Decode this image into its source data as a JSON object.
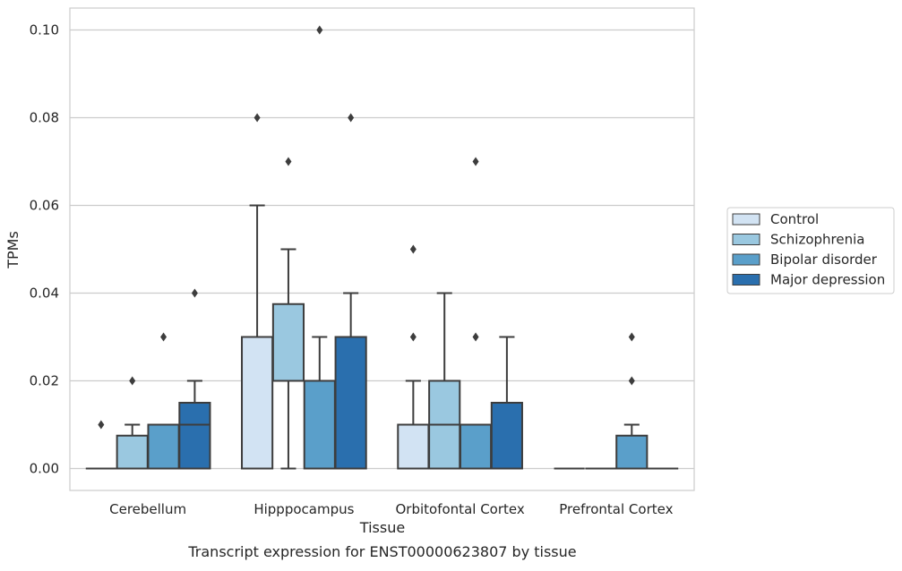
{
  "chart_data": {
    "type": "box",
    "title": "",
    "caption": "Transcript expression for ENST00000623807 by tissue",
    "xlabel": "Tissue",
    "ylabel": "TPMs",
    "ylim": [
      -0.005,
      0.105
    ],
    "yticks": [
      0.0,
      0.02,
      0.04,
      0.06,
      0.08,
      0.1
    ],
    "ytick_labels": [
      "0.00",
      "0.02",
      "0.04",
      "0.06",
      "0.08",
      "0.10"
    ],
    "grid": "horizontal",
    "legend_position": "right",
    "categories": [
      "Cerebellum",
      "Hipppocampus",
      "Orbitofontal Cortex",
      "Prefrontal Cortex"
    ],
    "series": [
      {
        "name": "Control",
        "color": "#d2e3f3",
        "boxes": [
          {
            "q1": 0.0,
            "median": 0.0,
            "q3": 0.0,
            "whisker_low": 0.0,
            "whisker_high": 0.0,
            "outliers": [
              0.01
            ]
          },
          {
            "q1": 0.0,
            "median": 0.0,
            "q3": 0.03,
            "whisker_low": 0.0,
            "whisker_high": 0.06,
            "outliers": [
              0.08
            ]
          },
          {
            "q1": 0.0,
            "median": 0.0,
            "q3": 0.01,
            "whisker_low": 0.0,
            "whisker_high": 0.02,
            "outliers": [
              0.03,
              0.05
            ]
          },
          {
            "q1": 0.0,
            "median": 0.0,
            "q3": 0.0,
            "whisker_low": 0.0,
            "whisker_high": 0.0,
            "outliers": []
          }
        ]
      },
      {
        "name": "Schizophrenia",
        "color": "#9ac8e0",
        "boxes": [
          {
            "q1": 0.0,
            "median": 0.0,
            "q3": 0.0075,
            "whisker_low": 0.0,
            "whisker_high": 0.01,
            "outliers": [
              0.02
            ]
          },
          {
            "q1": 0.02,
            "median": 0.02,
            "q3": 0.0375,
            "whisker_low": 0.0,
            "whisker_high": 0.05,
            "outliers": [
              0.07
            ]
          },
          {
            "q1": 0.0,
            "median": 0.01,
            "q3": 0.02,
            "whisker_low": 0.0,
            "whisker_high": 0.04,
            "outliers": []
          },
          {
            "q1": 0.0,
            "median": 0.0,
            "q3": 0.0,
            "whisker_low": 0.0,
            "whisker_high": 0.0,
            "outliers": []
          }
        ]
      },
      {
        "name": "Bipolar disorder",
        "color": "#5a9fca",
        "boxes": [
          {
            "q1": 0.0,
            "median": 0.01,
            "q3": 0.01,
            "whisker_low": 0.0,
            "whisker_high": 0.01,
            "outliers": [
              0.03
            ]
          },
          {
            "q1": 0.0,
            "median": 0.02,
            "q3": 0.02,
            "whisker_low": 0.0,
            "whisker_high": 0.03,
            "outliers": [
              0.1
            ]
          },
          {
            "q1": 0.0,
            "median": 0.01,
            "q3": 0.01,
            "whisker_low": 0.0,
            "whisker_high": 0.01,
            "outliers": [
              0.03,
              0.07
            ]
          },
          {
            "q1": 0.0,
            "median": 0.0,
            "q3": 0.0075,
            "whisker_low": 0.0,
            "whisker_high": 0.01,
            "outliers": [
              0.02,
              0.03
            ]
          }
        ]
      },
      {
        "name": "Major depression",
        "color": "#2a6fae",
        "boxes": [
          {
            "q1": 0.0,
            "median": 0.01,
            "q3": 0.015,
            "whisker_low": 0.0,
            "whisker_high": 0.02,
            "outliers": [
              0.04
            ]
          },
          {
            "q1": 0.0,
            "median": 0.0,
            "q3": 0.03,
            "whisker_low": 0.0,
            "whisker_high": 0.04,
            "outliers": [
              0.08
            ]
          },
          {
            "q1": 0.0,
            "median": 0.0,
            "q3": 0.015,
            "whisker_low": 0.0,
            "whisker_high": 0.03,
            "outliers": []
          },
          {
            "q1": 0.0,
            "median": 0.0,
            "q3": 0.0,
            "whisker_low": 0.0,
            "whisker_high": 0.0,
            "outliers": []
          }
        ]
      }
    ]
  }
}
